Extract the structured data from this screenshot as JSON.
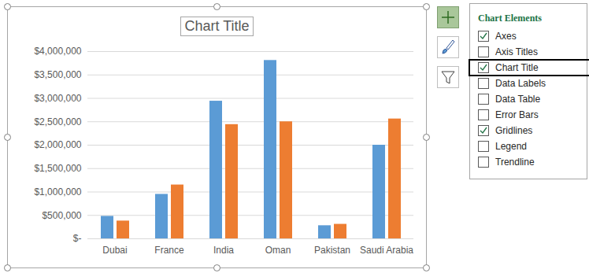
{
  "chart_data": {
    "type": "bar",
    "title": "Chart Title",
    "categories": [
      "Dubai",
      "France",
      "India",
      "Oman",
      "Pakistan",
      "Saudi Arabia"
    ],
    "series": [
      {
        "color": "#5b9bd5",
        "values": [
          480000,
          950000,
          2940000,
          3810000,
          280000,
          2000000
        ]
      },
      {
        "color": "#ed7d31",
        "values": [
          380000,
          1150000,
          2440000,
          2500000,
          310000,
          2560000
        ]
      }
    ],
    "ylim": [
      0,
      4000000
    ],
    "yticks": [
      {
        "value": 0,
        "label": "$-"
      },
      {
        "value": 500000,
        "label": "$500,000"
      },
      {
        "value": 1000000,
        "label": "$1,000,000"
      },
      {
        "value": 1500000,
        "label": "$1,500,000"
      },
      {
        "value": 2000000,
        "label": "$2,000,000"
      },
      {
        "value": 2500000,
        "label": "$2,500,000"
      },
      {
        "value": 3000000,
        "label": "$3,000,000"
      },
      {
        "value": 3500000,
        "label": "$3,500,000"
      },
      {
        "value": 4000000,
        "label": "$4,000,000"
      }
    ],
    "grid": true
  },
  "chart_elements_panel": {
    "title": "Chart Elements",
    "selected": "Chart Title",
    "items": [
      {
        "label": "Axes",
        "checked": true
      },
      {
        "label": "Axis Titles",
        "checked": false
      },
      {
        "label": "Chart Title",
        "checked": true
      },
      {
        "label": "Data Labels",
        "checked": false
      },
      {
        "label": "Data Table",
        "checked": false
      },
      {
        "label": "Error Bars",
        "checked": false
      },
      {
        "label": "Gridlines",
        "checked": true
      },
      {
        "label": "Legend",
        "checked": false
      },
      {
        "label": "Trendline",
        "checked": false
      }
    ]
  }
}
